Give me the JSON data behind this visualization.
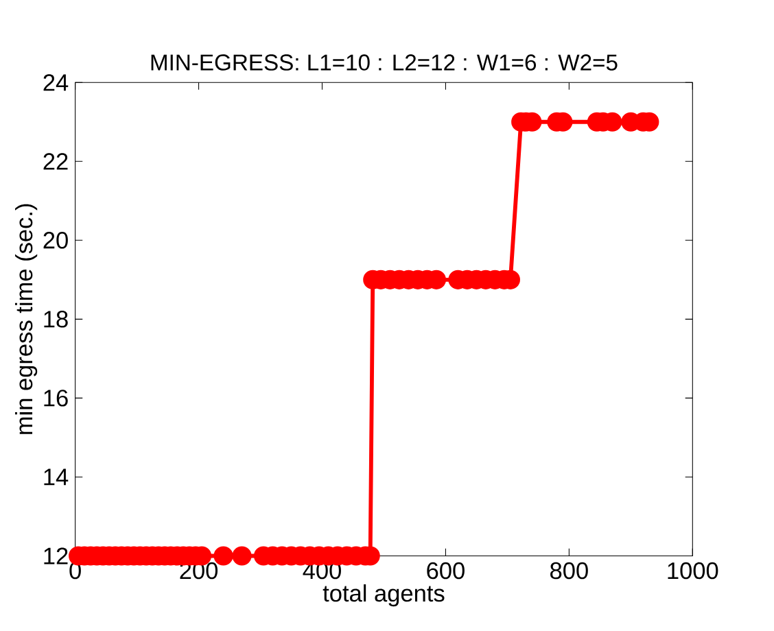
{
  "chart_data": {
    "type": "line",
    "title": "MIN-EGRESS: L1=10 : L2=12 : W1=6 : W2=5",
    "xlabel": "total agents",
    "ylabel": "min egress time (sec.)",
    "xlim": [
      0,
      1000
    ],
    "xticks": [
      0,
      200,
      400,
      600,
      800,
      1000
    ],
    "ylim": [
      12,
      24
    ],
    "yticks": [
      12,
      14,
      16,
      18,
      20,
      22,
      24
    ],
    "grid": false,
    "marker": "circle",
    "line_style": "solid",
    "series": [
      {
        "color": "#ff0000",
        "x": [
          5,
          15,
          25,
          35,
          45,
          55,
          65,
          75,
          85,
          95,
          105,
          115,
          125,
          135,
          145,
          155,
          165,
          175,
          185,
          195,
          205,
          240,
          270,
          305,
          320,
          335,
          350,
          365,
          380,
          395,
          410,
          425,
          440,
          455,
          470,
          478,
          482,
          495,
          510,
          525,
          540,
          555,
          570,
          585,
          620,
          635,
          650,
          665,
          680,
          695,
          705,
          722,
          730,
          740,
          780,
          790,
          845,
          855,
          870,
          900,
          920,
          930
        ],
        "values": [
          12,
          12,
          12,
          12,
          12,
          12,
          12,
          12,
          12,
          12,
          12,
          12,
          12,
          12,
          12,
          12,
          12,
          12,
          12,
          12,
          12,
          12,
          12,
          12,
          12,
          12,
          12,
          12,
          12,
          12,
          12,
          12,
          12,
          12,
          12,
          12,
          19,
          19,
          19,
          19,
          19,
          19,
          19,
          19,
          19,
          19,
          19,
          19,
          19,
          19,
          19,
          23,
          23,
          23,
          23,
          23,
          23,
          23,
          23,
          23,
          23,
          23
        ]
      }
    ]
  }
}
